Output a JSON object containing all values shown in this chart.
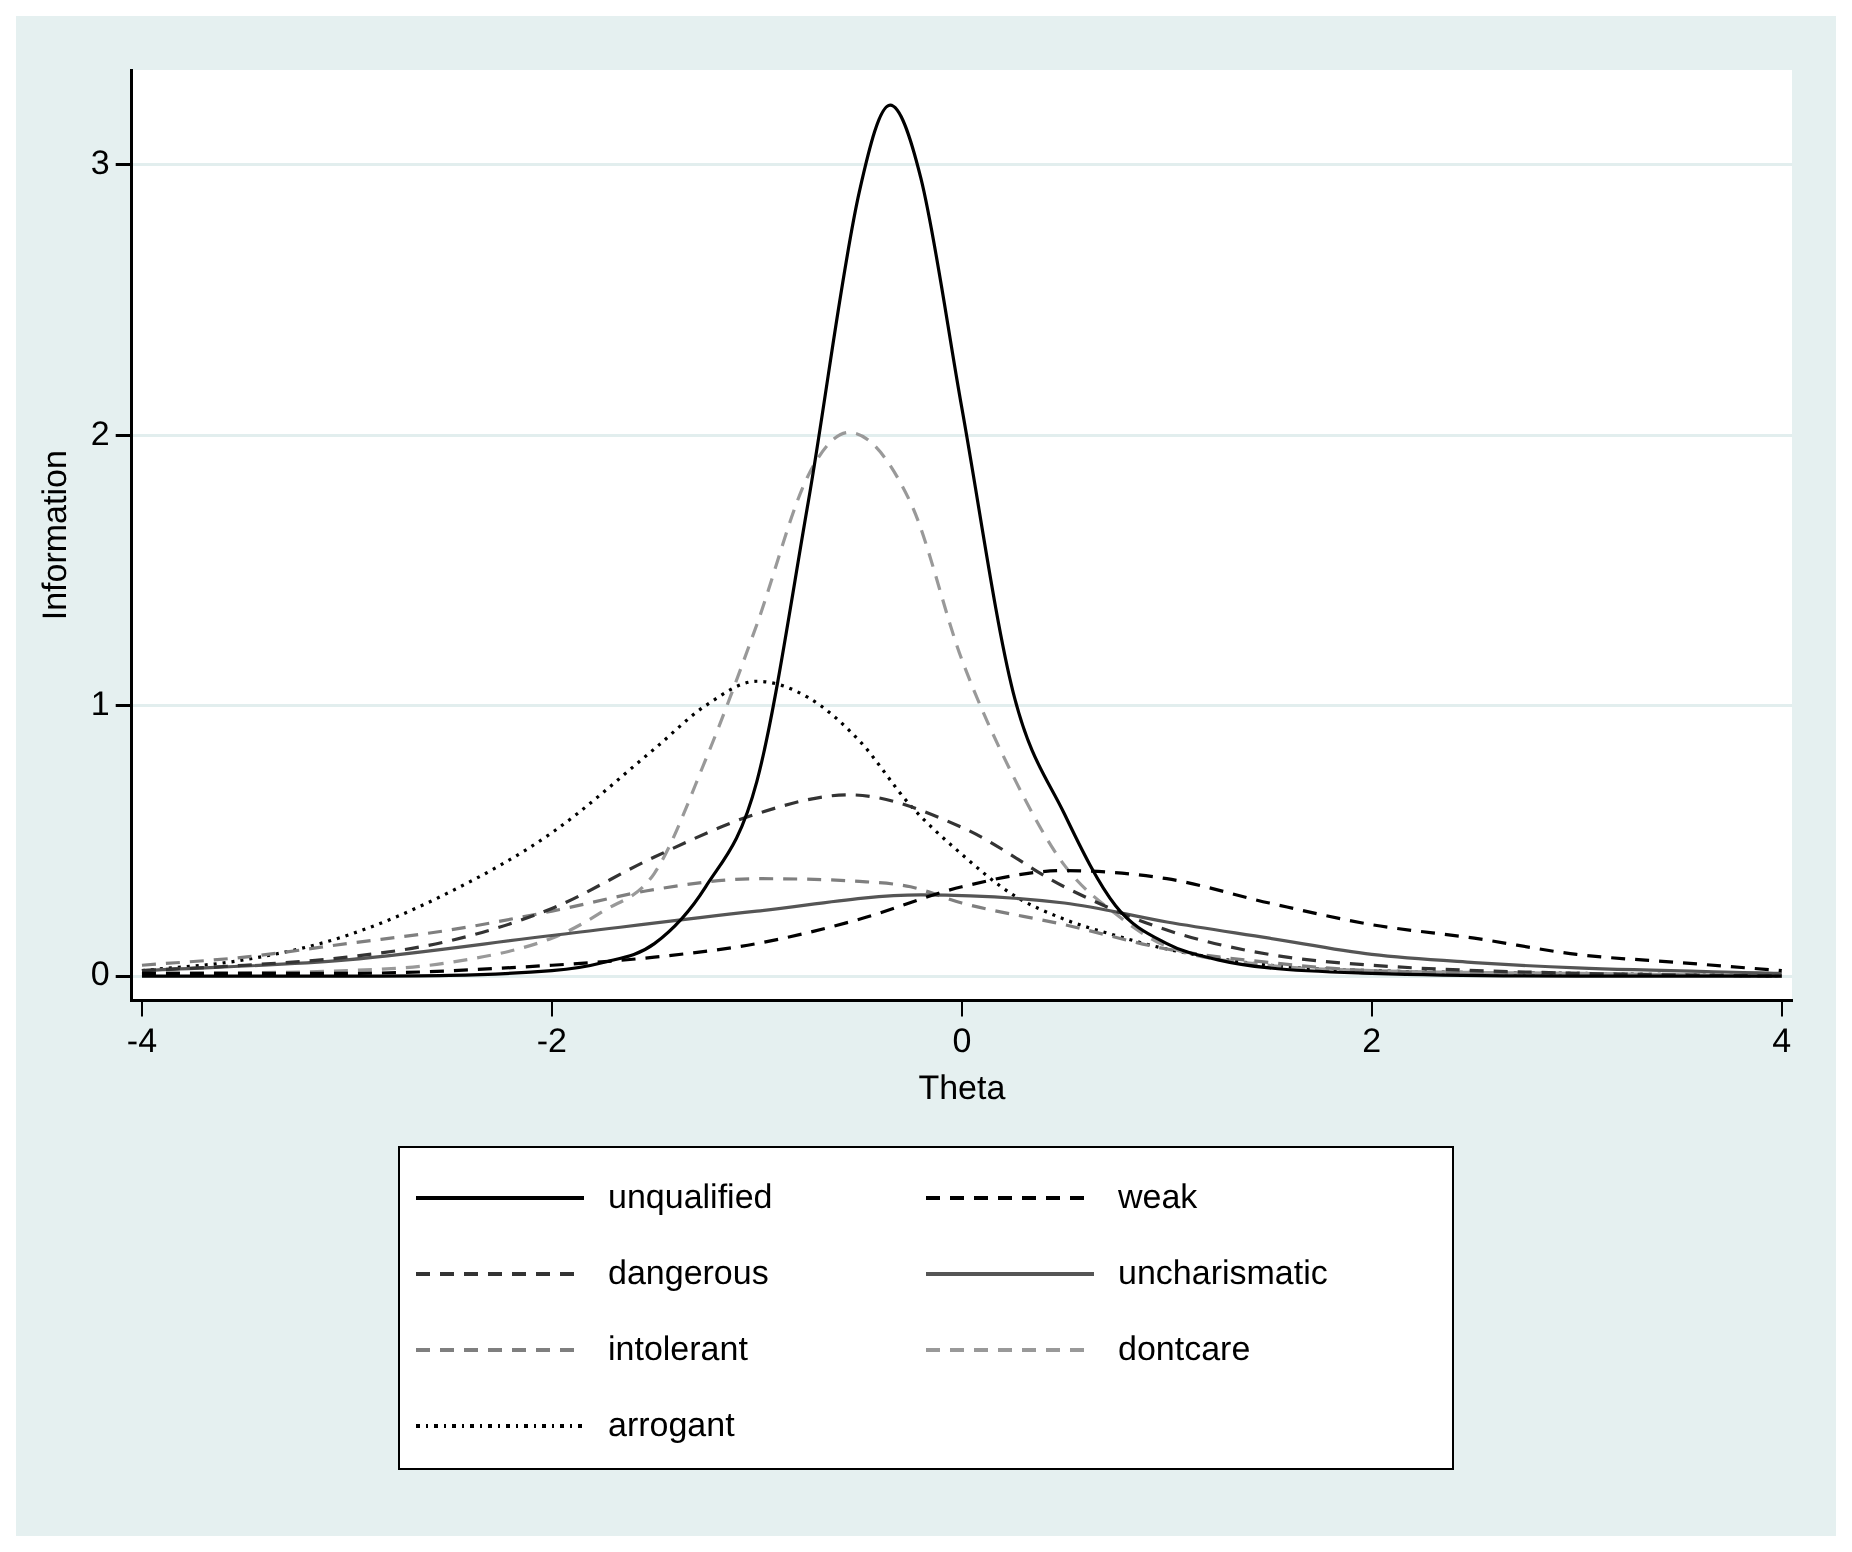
{
  "chart_data": {
    "type": "line",
    "xlabel": "Theta",
    "ylabel": "Information",
    "xlim": [
      -4.05,
      4.05
    ],
    "xticks": [
      -4,
      -2,
      0,
      2,
      4
    ],
    "ylim": [
      -0.09,
      3.35
    ],
    "yticks": [
      0,
      1,
      2,
      3
    ],
    "grid": "y",
    "legend": "bottom",
    "marker": "none",
    "series": [
      {
        "name": "unqualified",
        "color": "#000000",
        "line_style": "solid",
        "x": [
          -4,
          -3,
          -2,
          -1.75,
          -1.5,
          -1.25,
          -1,
          -0.75,
          -0.5,
          -0.35,
          -0.2,
          0,
          0.25,
          0.5,
          0.75,
          1,
          1.25,
          1.5,
          2,
          3,
          4
        ],
        "values": [
          0,
          0,
          0.02,
          0.05,
          0.12,
          0.33,
          0.72,
          1.75,
          2.9,
          3.22,
          2.95,
          2.1,
          1.05,
          0.6,
          0.26,
          0.12,
          0.06,
          0.03,
          0.01,
          0,
          0
        ]
      },
      {
        "name": "weak",
        "color": "#000000",
        "line_style": "dashed",
        "x": [
          -4,
          -3,
          -2,
          -1.5,
          -1,
          -0.5,
          0,
          0.5,
          1,
          1.5,
          2,
          2.5,
          3,
          3.5,
          4
        ],
        "values": [
          0.01,
          0.01,
          0.04,
          0.07,
          0.12,
          0.21,
          0.33,
          0.39,
          0.36,
          0.27,
          0.19,
          0.14,
          0.08,
          0.05,
          0.02
        ]
      },
      {
        "name": "dangerous",
        "color": "#333333",
        "line_style": "dashed",
        "x": [
          -4,
          -3.5,
          -3,
          -2.5,
          -2,
          -1.5,
          -1,
          -0.55,
          0,
          0.5,
          1,
          1.5,
          2,
          3,
          4
        ],
        "values": [
          0.02,
          0.04,
          0.07,
          0.13,
          0.25,
          0.44,
          0.6,
          0.67,
          0.55,
          0.33,
          0.17,
          0.08,
          0.04,
          0.01,
          0
        ]
      },
      {
        "name": "uncharismatic",
        "color": "#555555",
        "line_style": "solid",
        "x": [
          -4,
          -3,
          -2,
          -1,
          -0.2,
          0.5,
          1,
          1.5,
          2,
          2.5,
          3,
          4
        ],
        "values": [
          0.02,
          0.06,
          0.15,
          0.24,
          0.3,
          0.27,
          0.2,
          0.14,
          0.08,
          0.05,
          0.03,
          0.01
        ]
      },
      {
        "name": "intolerant",
        "color": "#7f7f7f",
        "line_style": "dashed",
        "x": [
          -4,
          -3.5,
          -3,
          -2.5,
          -2,
          -1.5,
          -1,
          -0.5,
          -0.25,
          0,
          0.5,
          1,
          1.5,
          2,
          3,
          4
        ],
        "values": [
          0.04,
          0.07,
          0.12,
          0.17,
          0.24,
          0.32,
          0.36,
          0.35,
          0.33,
          0.27,
          0.19,
          0.1,
          0.05,
          0.02,
          0.01,
          0
        ]
      },
      {
        "name": "dontcare",
        "color": "#999999",
        "line_style": "dashed",
        "x": [
          -4,
          -3,
          -2.5,
          -2,
          -1.75,
          -1.5,
          -1.25,
          -1,
          -0.75,
          -0.55,
          -0.25,
          0,
          0.25,
          0.5,
          0.75,
          1,
          1.5,
          2,
          3,
          4
        ],
        "values": [
          0.01,
          0.02,
          0.05,
          0.14,
          0.24,
          0.38,
          0.8,
          1.3,
          1.85,
          2.01,
          1.75,
          1.17,
          0.74,
          0.41,
          0.23,
          0.11,
          0.04,
          0.02,
          0.01,
          0
        ]
      },
      {
        "name": "arrogant",
        "color": "#000000",
        "line_style": "dotted",
        "x": [
          -4,
          -3.5,
          -3,
          -2.5,
          -2,
          -1.5,
          -1.25,
          -1,
          -0.75,
          -0.5,
          -0.25,
          0,
          0.25,
          0.5,
          0.75,
          1,
          1.5,
          2,
          3,
          4
        ],
        "values": [
          0.02,
          0.06,
          0.15,
          0.31,
          0.53,
          0.84,
          1.0,
          1.09,
          1.03,
          0.87,
          0.63,
          0.45,
          0.3,
          0.21,
          0.15,
          0.1,
          0.04,
          0.02,
          0.01,
          0
        ]
      }
    ]
  }
}
